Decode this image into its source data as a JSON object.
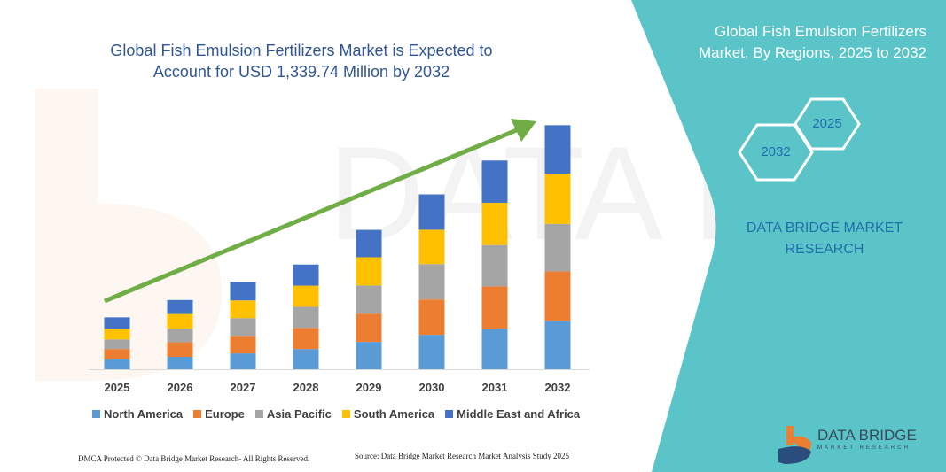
{
  "title": "Global Fish Emulsion Fertilizers Market is Expected to Account for USD 1,339.74 Million by 2032",
  "side_panel": {
    "title": "Global Fish Emulsion Fertilizers Market, By Regions, 2025 to 2032",
    "hex_start": "2025",
    "hex_end": "2032",
    "brand": "DATA BRIDGE MARKET RESEARCH",
    "color": "#5bc4c9"
  },
  "logo": {
    "name": "DATA BRIDGE",
    "sub": "MARKET RESEARCH"
  },
  "footer": {
    "left": "DMCA Protected © Data Bridge Market Research- All Rights Reserved.",
    "right": "Source: Data Bridge Market Research Market Analysis Study 2025"
  },
  "chart_data": {
    "type": "bar",
    "stacked": true,
    "title": "Global Fish Emulsion Fertilizers Market is Expected to Account for USD 1,339.74 Million by 2032",
    "categories": [
      "2025",
      "2026",
      "2027",
      "2028",
      "2029",
      "2030",
      "2031",
      "2032"
    ],
    "series": [
      {
        "name": "North America",
        "color": "#5b9bd5",
        "values": [
          58,
          68,
          87,
          111,
          150,
          189,
          223,
          266
        ]
      },
      {
        "name": "Europe",
        "color": "#ed7d31",
        "values": [
          53,
          80,
          97,
          116,
          155,
          194,
          232,
          271
        ]
      },
      {
        "name": "Asia Pacific",
        "color": "#a5a5a5",
        "values": [
          53,
          75,
          97,
          116,
          155,
          194,
          227,
          261
        ]
      },
      {
        "name": "South America",
        "color": "#ffc000",
        "values": [
          58,
          80,
          97,
          116,
          155,
          189,
          232,
          276
        ]
      },
      {
        "name": "Middle East and Africa",
        "color": "#4472c4",
        "values": [
          63,
          77,
          102,
          116,
          150,
          194,
          232,
          266
        ]
      }
    ],
    "ylim": [
      0,
      1400
    ],
    "y_axis_shown": false,
    "grid": false,
    "legend_position": "bottom",
    "trend_arrow_color": "#70ad47"
  }
}
